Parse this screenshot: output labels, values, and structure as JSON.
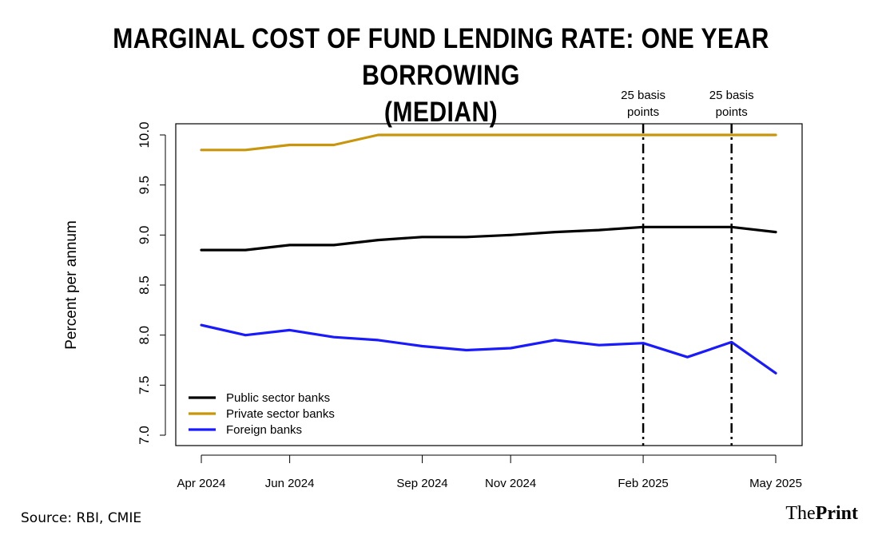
{
  "header": {
    "title_line1": "MARGINAL COST OF FUND LENDING RATE: ONE YEAR BORROWING",
    "title_line2": "(MEDIAN)"
  },
  "footer": {
    "source": "Source: RBI, CMIE",
    "brand_part1": "The",
    "brand_part2": "Print"
  },
  "chart_data": {
    "type": "line",
    "title": "MARGINAL COST OF FUND LENDING RATE: ONE YEAR BORROWING (MEDIAN)",
    "xlabel": "",
    "ylabel": "Percent per annum",
    "ylim": [
      7.0,
      10.0
    ],
    "yticks": [
      "7.0",
      "7.5",
      "8.0",
      "8.5",
      "9.0",
      "9.5",
      "10.0"
    ],
    "x": [
      "Apr 2024",
      "May 2024",
      "Jun 2024",
      "Jul 2024",
      "Aug 2024",
      "Sep 2024",
      "Oct 2024",
      "Nov 2024",
      "Dec 2024",
      "Jan 2025",
      "Feb 2025",
      "Mar 2025",
      "Apr 2025",
      "May 2025"
    ],
    "x_tick_labels": [
      "Apr 2024",
      "",
      "Jun 2024",
      "",
      "",
      "Sep 2024",
      "",
      "Nov 2024",
      "",
      "",
      "Feb 2025",
      "",
      "",
      "May 2025"
    ],
    "series": [
      {
        "name": "Public sector banks",
        "color": "#000000",
        "values": [
          8.85,
          8.85,
          8.9,
          8.9,
          8.95,
          8.98,
          8.98,
          9.0,
          9.03,
          9.05,
          9.08,
          9.08,
          9.08,
          9.03
        ]
      },
      {
        "name": "Private sector banks",
        "color": "#c8960c",
        "values": [
          9.85,
          9.85,
          9.9,
          9.9,
          10.0,
          10.0,
          10.0,
          10.0,
          10.0,
          10.0,
          10.0,
          10.0,
          10.0,
          10.0
        ]
      },
      {
        "name": "Foreign banks",
        "color": "#1a1aff",
        "values": [
          8.1,
          8.0,
          8.05,
          7.98,
          7.95,
          7.89,
          7.85,
          7.87,
          7.95,
          7.9,
          7.92,
          7.78,
          7.93,
          7.62
        ]
      }
    ],
    "annotations": [
      {
        "x": "Feb 2025",
        "line1": "25 basis",
        "line2": "points"
      },
      {
        "x": "Apr 2025",
        "line1": "25 basis",
        "line2": "points"
      }
    ],
    "legend_position": "bottom-left"
  }
}
